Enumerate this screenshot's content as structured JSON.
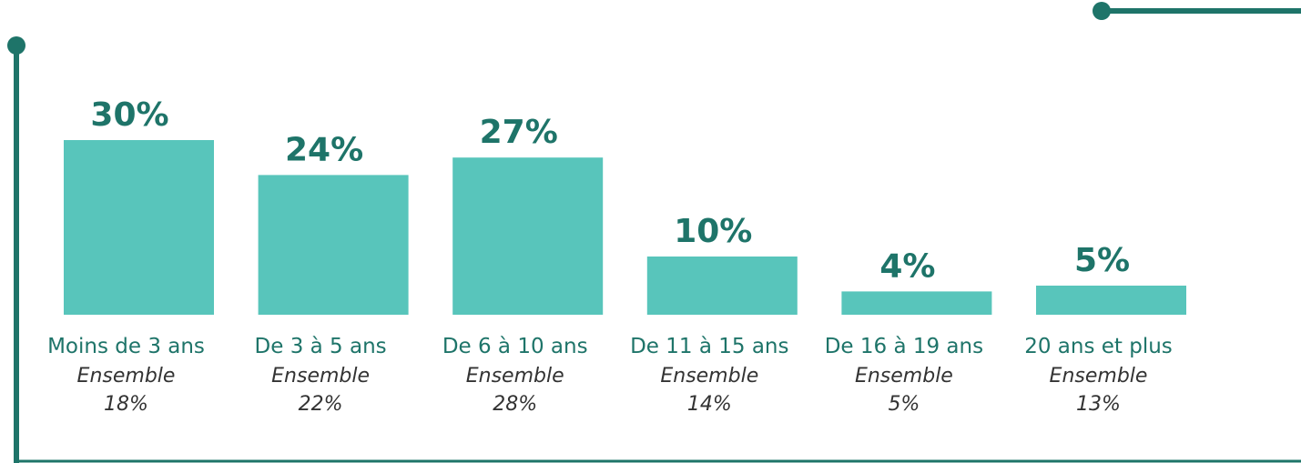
{
  "chart_data": {
    "type": "bar",
    "categories": [
      "Moins de 3 ans",
      "De 3 à 5 ans",
      "De 6 à 10 ans",
      "De 11 à 15 ans",
      "De 16 à 19 ans",
      "20 ans et plus"
    ],
    "values": [
      30,
      24,
      27,
      10,
      4,
      5
    ],
    "value_labels": [
      "30%",
      "24%",
      "27%",
      "10%",
      "4%",
      "5%"
    ],
    "color": "#58c5bb",
    "comparison": {
      "name": "Ensemble",
      "values": [
        18,
        22,
        28,
        14,
        5,
        13
      ],
      "value_labels": [
        "18%",
        "22%",
        "28%",
        "14%",
        "5%",
        "13%"
      ]
    }
  }
}
